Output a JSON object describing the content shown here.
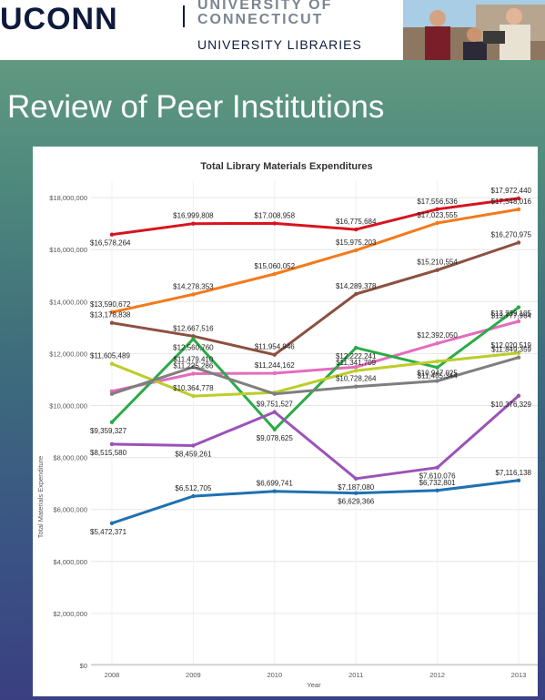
{
  "header": {
    "logo_text": "UCONN",
    "university_line1": "UNIVERSITY OF",
    "university_line2": "CONNECTICUT",
    "libraries": "UNIVERSITY LIBRARIES"
  },
  "slide": {
    "title": "Review of Peer Institutions"
  },
  "chart_data": {
    "type": "line",
    "title": "Total Library Materials Expenditures",
    "xlabel": "Year",
    "ylabel": "Total Materials Expenditure",
    "x": [
      "2008",
      "2009",
      "2010",
      "2011",
      "2012",
      "2013"
    ],
    "ylim": [
      0,
      18500000
    ],
    "yticks": [
      0,
      2000000,
      4000000,
      6000000,
      8000000,
      10000000,
      12000000,
      14000000,
      16000000,
      18000000
    ],
    "ytick_labels": [
      "$0",
      "$2,000,000",
      "$4,000,000",
      "$6,000,000",
      "$8,000,000",
      "$10,000,000",
      "$12,000,000",
      "$14,000,000",
      "$16,000,000",
      "$18,000,000"
    ],
    "grid": true,
    "series": [
      {
        "color": "#d7141e",
        "values": [
          16578264,
          16999808,
          17008958,
          16775684,
          17556536,
          17972440
        ],
        "labels": [
          "$16,578,264",
          "$16,999,808",
          "$17,008,958",
          "$16,775,684",
          "$17,556,536",
          "$17,972,440"
        ]
      },
      {
        "color": "#f47a1a",
        "values": [
          13590672,
          14278353,
          15060052,
          15975203,
          17023555,
          17548016
        ],
        "labels": [
          "$13,590,672",
          "$14,278,353",
          "$15,060,052",
          "$15,975,203",
          "$17,023,555",
          "$17,548,016"
        ]
      },
      {
        "color": "#8c5040",
        "values": [
          13178838,
          12667516,
          11954946,
          14289378,
          15210554,
          16270975
        ],
        "labels": [
          "$13,178,838",
          "$12,667,516",
          "$11,954,946",
          "$14,289,378",
          "$15,210,554",
          "$16,270,975"
        ]
      },
      {
        "color": "#e46cbc",
        "values": [
          10550000,
          11225286,
          11244162,
          11480000,
          12392050,
          13239105
        ],
        "labels": [
          "",
          "$11,225,286",
          "$11,244,162",
          "",
          "$12,392,050",
          "$13,239,105"
        ]
      },
      {
        "color": "#2bab47",
        "values": [
          9359327,
          12560760,
          9078625,
          12222241,
          11465344,
          13777964
        ],
        "labels": [
          "$9,359,327",
          "$12,560,760",
          "$9,078,625",
          "$12,222,241",
          "$11,465,344",
          "$13,777,964"
        ]
      },
      {
        "color": "#bccd29",
        "values": [
          11605489,
          10364778,
          10500000,
          11341709,
          11700000,
          12020519
        ],
        "labels": [
          "$11,605,489",
          "$10,364,778",
          "",
          "$11,341,709",
          "",
          "$12,020,519"
        ]
      },
      {
        "color": "#7f7f7f",
        "values": [
          10450000,
          11479410,
          10450000,
          10728264,
          10947025,
          11849359
        ],
        "labels": [
          "",
          "$11,479,410",
          "",
          "$10,728,264",
          "$10,947,025",
          "$11,849,359"
        ]
      },
      {
        "color": "#9b52b8",
        "values": [
          8515580,
          8459261,
          9751527,
          7187080,
          7610076,
          10376329
        ],
        "labels": [
          "$8,515,580",
          "$8,459,261",
          "$9,751,527",
          "$7,187,080",
          "$7,610,076",
          "$10,376,329"
        ]
      },
      {
        "color": "#1f71b0",
        "values": [
          5472371,
          6512705,
          6699741,
          6629366,
          6732801,
          7116138
        ],
        "labels": [
          "$5,472,371",
          "$6,512,705",
          "$6,699,741",
          "$6,629,366",
          "$6,732,801",
          "$7,116,138"
        ]
      }
    ]
  }
}
